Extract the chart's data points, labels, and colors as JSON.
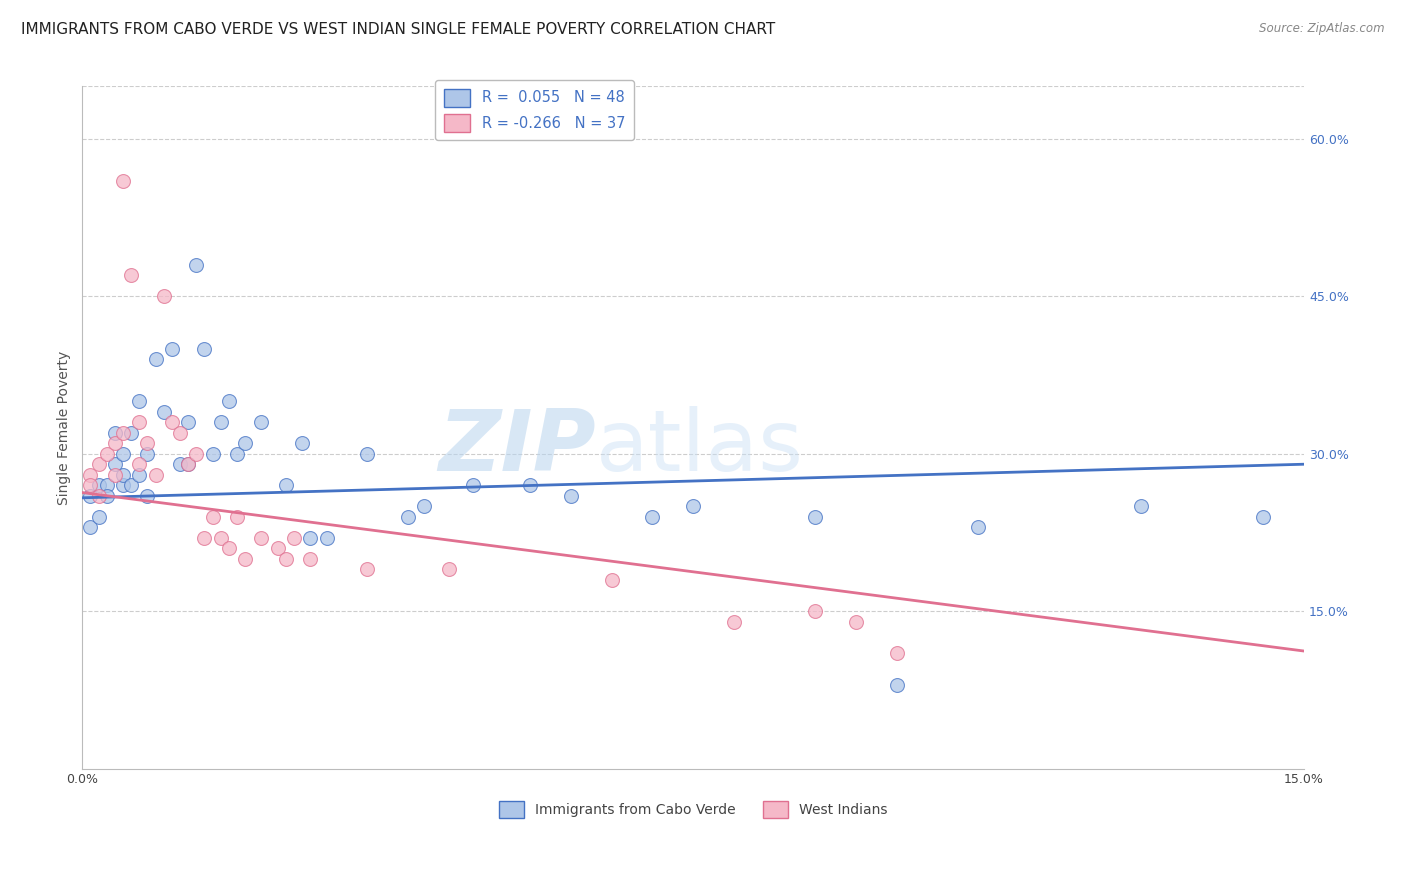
{
  "title": "IMMIGRANTS FROM CABO VERDE VS WEST INDIAN SINGLE FEMALE POVERTY CORRELATION CHART",
  "source": "Source: ZipAtlas.com",
  "ylabel": "Single Female Poverty",
  "xlim": [
    0.0,
    0.15
  ],
  "ylim": [
    0.0,
    0.65
  ],
  "yticks_right": [
    0.15,
    0.3,
    0.45,
    0.6
  ],
  "ytick_right_labels": [
    "15.0%",
    "30.0%",
    "45.0%",
    "60.0%"
  ],
  "legend_blue_r": "0.055",
  "legend_blue_n": "48",
  "legend_pink_r": "-0.266",
  "legend_pink_n": "37",
  "blue_color": "#aec6e8",
  "pink_color": "#f5b8c8",
  "blue_line_color": "#4472c4",
  "pink_line_color": "#e07090",
  "watermark_zip": "ZIP",
  "watermark_atlas": "atlas",
  "grid_color": "#c8c8c8",
  "background_color": "#ffffff",
  "title_fontsize": 11,
  "axis_label_fontsize": 10,
  "tick_fontsize": 9,
  "marker_size": 100,
  "blue_x": [
    0.001,
    0.001,
    0.002,
    0.002,
    0.003,
    0.003,
    0.004,
    0.004,
    0.005,
    0.005,
    0.005,
    0.006,
    0.006,
    0.007,
    0.007,
    0.008,
    0.008,
    0.009,
    0.01,
    0.011,
    0.012,
    0.013,
    0.013,
    0.014,
    0.015,
    0.016,
    0.017,
    0.018,
    0.019,
    0.02,
    0.022,
    0.025,
    0.027,
    0.028,
    0.03,
    0.035,
    0.04,
    0.042,
    0.048,
    0.055,
    0.06,
    0.07,
    0.075,
    0.09,
    0.1,
    0.11,
    0.13,
    0.145
  ],
  "blue_y": [
    0.26,
    0.23,
    0.27,
    0.24,
    0.27,
    0.26,
    0.32,
    0.29,
    0.3,
    0.27,
    0.28,
    0.32,
    0.27,
    0.35,
    0.28,
    0.3,
    0.26,
    0.39,
    0.34,
    0.4,
    0.29,
    0.33,
    0.29,
    0.48,
    0.4,
    0.3,
    0.33,
    0.35,
    0.3,
    0.31,
    0.33,
    0.27,
    0.31,
    0.22,
    0.22,
    0.3,
    0.24,
    0.25,
    0.27,
    0.27,
    0.26,
    0.24,
    0.25,
    0.24,
    0.08,
    0.23,
    0.25,
    0.24
  ],
  "pink_x": [
    0.001,
    0.001,
    0.002,
    0.002,
    0.003,
    0.004,
    0.004,
    0.005,
    0.005,
    0.006,
    0.007,
    0.007,
    0.008,
    0.009,
    0.01,
    0.011,
    0.012,
    0.013,
    0.014,
    0.015,
    0.016,
    0.017,
    0.018,
    0.019,
    0.02,
    0.022,
    0.024,
    0.025,
    0.026,
    0.028,
    0.035,
    0.045,
    0.065,
    0.08,
    0.09,
    0.095,
    0.1
  ],
  "pink_y": [
    0.28,
    0.27,
    0.29,
    0.26,
    0.3,
    0.31,
    0.28,
    0.56,
    0.32,
    0.47,
    0.33,
    0.29,
    0.31,
    0.28,
    0.45,
    0.33,
    0.32,
    0.29,
    0.3,
    0.22,
    0.24,
    0.22,
    0.21,
    0.24,
    0.2,
    0.22,
    0.21,
    0.2,
    0.22,
    0.2,
    0.19,
    0.19,
    0.18,
    0.14,
    0.15,
    0.14,
    0.11
  ],
  "blue_trend_x": [
    0.0,
    0.15
  ],
  "blue_trend_y": [
    0.258,
    0.29
  ],
  "pink_trend_x": [
    0.0,
    0.15
  ],
  "pink_trend_y": [
    0.263,
    0.112
  ]
}
